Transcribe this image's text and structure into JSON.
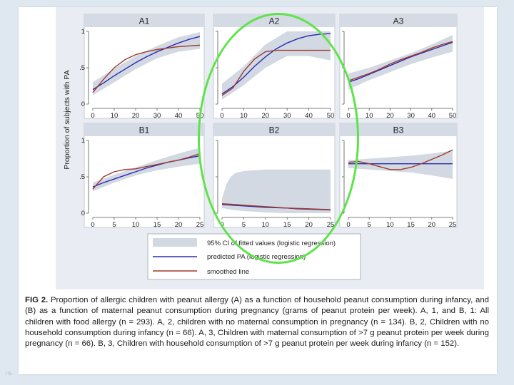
{
  "colors": {
    "predicted": "#2b2bb0",
    "smoothed": "#a03a2a",
    "ci_band": "#d2d9e2",
    "highlight_ring": "#5ee34a"
  },
  "y_axis_label": "Proportion of subjects with PA",
  "legend": {
    "ci": "95% CI of fitted values (logistic regression)",
    "predicted": "predicted PA (logistic regression)",
    "smoothed": "smoothed line"
  },
  "caption": {
    "fig_label": "FIG 2.",
    "text": "Proportion of allergic children with peanut allergy (A) as a function of household peanut consumption during infancy, and (B) as a function of maternal peanut consumption during pregnancy (grams of peanut protein per week). A, 1, and B, 1: All children with food allergy (n = 293). A, 2, children with no maternal consumption in pregnancy (n = 134). B, 2, Children with no household consumption during infancy (n = 66). A, 3, Children with maternal consumption of >7 g peanut protein per week during pregnancy (n = 66). B, 3, Children with household consumption of >7 g peanut protein per week during infancy (n = 152)."
  },
  "chart_data": [
    {
      "type": "line",
      "title": "A1",
      "x_ticks": [
        0,
        10,
        20,
        30,
        40,
        50
      ],
      "xlim": [
        0,
        50
      ],
      "y_ticks": [
        0,
        0.5,
        1
      ],
      "y_tick_labels": [
        "0",
        ".5",
        "1"
      ],
      "ylim": [
        0,
        1
      ],
      "series": [
        {
          "name": "predicted PA (logistic regression)",
          "x": [
            0,
            5,
            10,
            15,
            20,
            25,
            30,
            35,
            40,
            45,
            50
          ],
          "y": [
            0.2,
            0.29,
            0.39,
            0.48,
            0.57,
            0.65,
            0.72,
            0.78,
            0.84,
            0.89,
            0.93
          ]
        },
        {
          "name": "smoothed line",
          "x": [
            0,
            5,
            10,
            15,
            20,
            25,
            30,
            35,
            40,
            45,
            50
          ],
          "y": [
            0.16,
            0.34,
            0.5,
            0.61,
            0.68,
            0.72,
            0.75,
            0.77,
            0.79,
            0.8,
            0.81
          ]
        }
      ],
      "ci": {
        "x": [
          0,
          10,
          20,
          30,
          40,
          50
        ],
        "lower": [
          0.12,
          0.3,
          0.48,
          0.63,
          0.72,
          0.76
        ],
        "upper": [
          0.3,
          0.49,
          0.66,
          0.8,
          0.92,
          0.99
        ]
      }
    },
    {
      "type": "line",
      "title": "A2",
      "x_ticks": [
        0,
        10,
        20,
        30,
        40,
        50
      ],
      "xlim": [
        0,
        50
      ],
      "y_ticks": [
        0,
        0.5,
        1
      ],
      "y_tick_labels": [
        "0",
        ".5",
        "1"
      ],
      "ylim": [
        0,
        1
      ],
      "series": [
        {
          "name": "predicted PA (logistic regression)",
          "x": [
            0,
            5,
            10,
            15,
            20,
            25,
            30,
            35,
            40,
            45,
            50
          ],
          "y": [
            0.14,
            0.24,
            0.37,
            0.52,
            0.65,
            0.76,
            0.84,
            0.9,
            0.94,
            0.96,
            0.97
          ]
        },
        {
          "name": "smoothed line",
          "x": [
            0,
            5,
            10,
            15,
            20,
            25,
            30,
            35,
            40,
            45,
            50
          ],
          "y": [
            0.12,
            0.22,
            0.45,
            0.62,
            0.72,
            0.74,
            0.74,
            0.74,
            0.74,
            0.74,
            0.74
          ]
        }
      ],
      "ci": {
        "x": [
          0,
          10,
          20,
          30,
          40,
          50
        ],
        "lower": [
          0.06,
          0.26,
          0.5,
          0.66,
          0.66,
          0.6
        ],
        "upper": [
          0.28,
          0.52,
          0.82,
          1.0,
          1.0,
          1.0
        ]
      }
    },
    {
      "type": "line",
      "title": "A3",
      "x_ticks": [
        0,
        10,
        20,
        30,
        40,
        50
      ],
      "xlim": [
        0,
        50
      ],
      "y_ticks": [
        0,
        0.5,
        1
      ],
      "y_tick_labels": [
        "0",
        ".5",
        "1"
      ],
      "ylim": [
        0,
        1
      ],
      "series": [
        {
          "name": "predicted PA (logistic regression)",
          "x": [
            0,
            5,
            10,
            15,
            20,
            25,
            30,
            35,
            40,
            45,
            50
          ],
          "y": [
            0.3,
            0.35,
            0.41,
            0.47,
            0.53,
            0.59,
            0.65,
            0.7,
            0.75,
            0.8,
            0.85
          ]
        },
        {
          "name": "smoothed line",
          "x": [
            0,
            5,
            10,
            15,
            20,
            25,
            30,
            35,
            40,
            45,
            50
          ],
          "y": [
            0.32,
            0.37,
            0.42,
            0.48,
            0.55,
            0.61,
            0.66,
            0.71,
            0.77,
            0.82,
            0.86
          ]
        }
      ],
      "ci": {
        "x": [
          0,
          10,
          20,
          30,
          40,
          50
        ],
        "lower": [
          0.2,
          0.33,
          0.44,
          0.55,
          0.64,
          0.72
        ],
        "upper": [
          0.42,
          0.5,
          0.6,
          0.7,
          0.82,
          0.95
        ]
      }
    },
    {
      "type": "line",
      "title": "B1",
      "x_ticks": [
        0,
        5,
        10,
        15,
        20,
        25
      ],
      "xlim": [
        0,
        25
      ],
      "y_ticks": [
        0,
        0.5,
        1
      ],
      "y_tick_labels": [
        "0",
        ".5",
        "1"
      ],
      "ylim": [
        0,
        1
      ],
      "series": [
        {
          "name": "predicted PA (logistic regression)",
          "x": [
            0,
            2.5,
            5,
            7.5,
            10,
            12.5,
            15,
            17.5,
            20,
            22.5,
            25
          ],
          "y": [
            0.36,
            0.42,
            0.47,
            0.52,
            0.57,
            0.62,
            0.66,
            0.7,
            0.73,
            0.76,
            0.79
          ]
        },
        {
          "name": "smoothed line",
          "x": [
            0,
            2.5,
            5,
            7.5,
            10,
            12.5,
            15,
            17.5,
            20,
            22.5,
            25
          ],
          "y": [
            0.33,
            0.5,
            0.57,
            0.6,
            0.61,
            0.64,
            0.67,
            0.7,
            0.73,
            0.77,
            0.82
          ]
        }
      ],
      "ci": {
        "x": [
          0,
          5,
          10,
          15,
          20,
          25
        ],
        "lower": [
          0.3,
          0.42,
          0.52,
          0.59,
          0.64,
          0.68
        ],
        "upper": [
          0.42,
          0.53,
          0.63,
          0.73,
          0.82,
          0.9
        ]
      }
    },
    {
      "type": "line",
      "title": "B2",
      "x_ticks": [
        0,
        5,
        10,
        15,
        20,
        25
      ],
      "xlim": [
        0,
        25
      ],
      "y_ticks": [
        0,
        0.5,
        1
      ],
      "y_tick_labels": [
        "0",
        ".5",
        "1"
      ],
      "ylim": [
        0,
        1
      ],
      "series": [
        {
          "name": "predicted PA (logistic regression)",
          "x": [
            0,
            2.5,
            5,
            7.5,
            10,
            12.5,
            15,
            17.5,
            20,
            22.5,
            25
          ],
          "y": [
            0.12,
            0.11,
            0.1,
            0.09,
            0.08,
            0.075,
            0.07,
            0.06,
            0.055,
            0.05,
            0.045
          ]
        },
        {
          "name": "smoothed line",
          "x": [
            0,
            2.5,
            5,
            7.5,
            10,
            12.5,
            15,
            17.5,
            20,
            22.5,
            25
          ],
          "y": [
            0.13,
            0.12,
            0.11,
            0.1,
            0.09,
            0.08,
            0.07,
            0.065,
            0.06,
            0.055,
            0.05
          ]
        }
      ],
      "ci": {
        "x": [
          0,
          1,
          2,
          3,
          5,
          10,
          15,
          20,
          25
        ],
        "lower": [
          0.07,
          0.06,
          0.05,
          0.04,
          0.03,
          0.01,
          0.0,
          0.0,
          0.0
        ],
        "upper": [
          0.2,
          0.4,
          0.5,
          0.55,
          0.58,
          0.6,
          0.6,
          0.6,
          0.6
        ]
      }
    },
    {
      "type": "line",
      "title": "B3",
      "x_ticks": [
        0,
        5,
        10,
        15,
        20,
        25
      ],
      "xlim": [
        0,
        25
      ],
      "y_ticks": [
        0,
        0.5,
        1
      ],
      "y_tick_labels": [
        "0",
        ".5",
        "1"
      ],
      "ylim": [
        0,
        1
      ],
      "series": [
        {
          "name": "predicted PA (logistic regression)",
          "x": [
            0,
            5,
            10,
            15,
            20,
            25
          ],
          "y": [
            0.68,
            0.68,
            0.68,
            0.68,
            0.68,
            0.68
          ]
        },
        {
          "name": "smoothed line",
          "x": [
            0,
            2.5,
            5,
            7.5,
            10,
            12.5,
            15,
            17.5,
            20,
            22.5,
            25
          ],
          "y": [
            0.7,
            0.71,
            0.68,
            0.64,
            0.6,
            0.6,
            0.63,
            0.68,
            0.74,
            0.8,
            0.87
          ]
        }
      ],
      "ci": {
        "x": [
          0,
          5,
          10,
          15,
          20,
          25
        ],
        "lower": [
          0.62,
          0.6,
          0.58,
          0.56,
          0.52,
          0.47
        ],
        "upper": [
          0.73,
          0.75,
          0.77,
          0.79,
          0.82,
          0.86
        ]
      }
    }
  ]
}
